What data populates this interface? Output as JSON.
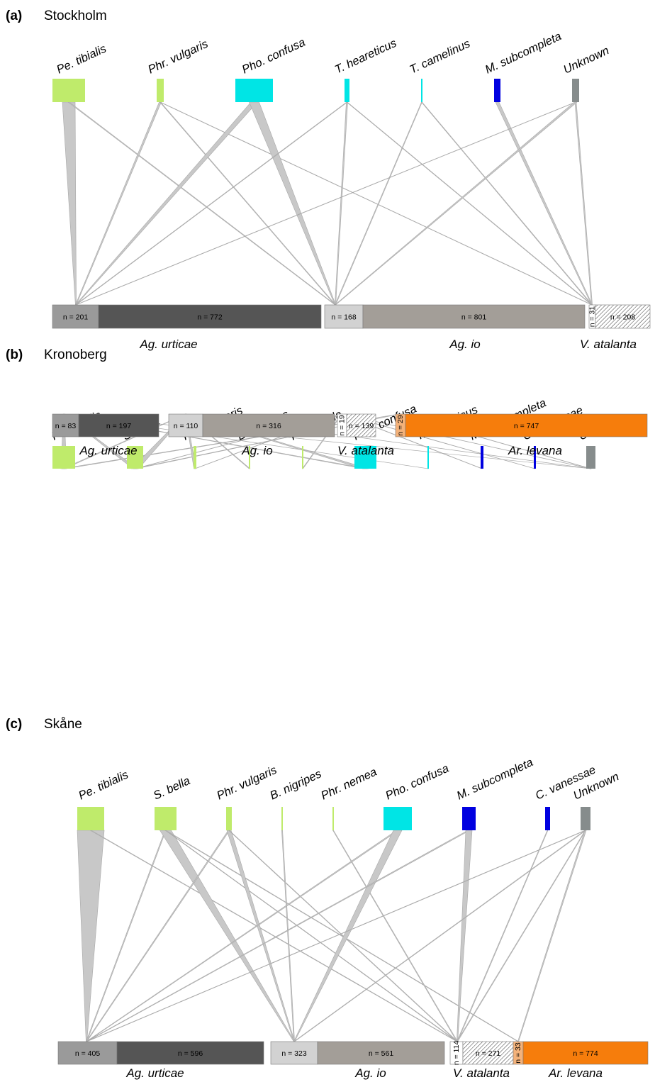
{
  "colors": {
    "unparasitized_urticae": "#555555",
    "parasitized_urticae": "#9a9a9a",
    "unparasitized_io": "#a39e98",
    "parasitized_io": "#d2d2d2",
    "unparasitized_levana": "#f67d0c",
    "parasitized_levana": "#f4b27a",
    "tachinid": "#bfeb6b",
    "ichneumonid": "#00e5e5",
    "braconid": "#0000e0",
    "unknown": "#868c8c",
    "link": "#c8c8c8"
  },
  "panels": [
    {
      "letter": "(a)",
      "name": "Stockholm",
      "parasitoids": [
        {
          "name": "Pe. tibialis",
          "color": "#bfeb6b"
        },
        {
          "name": "Phr. vulgaris",
          "color": "#bfeb6b"
        },
        {
          "name": "Pho. confusa",
          "color": "#00e5e5"
        },
        {
          "name": "T. heareticus",
          "color": "#00e5e5"
        },
        {
          "name": "T. camelinus",
          "color": "#00e5e5"
        },
        {
          "name": "M. subcompleta",
          "color": "#0000e0"
        },
        {
          "name": "Unknown",
          "color": "#868c8c"
        }
      ],
      "hosts": [
        {
          "name": "Ag. urticae",
          "parasitized": "n = 201",
          "unparasitized": "n = 772"
        },
        {
          "name": "Ag. io",
          "parasitized": "n = 168",
          "unparasitized": "n = 801"
        },
        {
          "name": "V. atalanta",
          "parasitized": "n = 31",
          "unparasitized": "n = 208"
        }
      ]
    },
    {
      "letter": "(b)",
      "name": "Kronoberg",
      "parasitoids": [
        {
          "name": "Pe. tibialis",
          "color": "#bfeb6b"
        },
        {
          "name": "S. bella",
          "color": "#bfeb6b"
        },
        {
          "name": "Phr. vulgaris",
          "color": "#bfeb6b"
        },
        {
          "name": "B. nigripes",
          "color": "#bfeb6b"
        },
        {
          "name": "Pa. pavida",
          "color": "#bfeb6b"
        },
        {
          "name": "Pho. confusa",
          "color": "#00e5e5"
        },
        {
          "name": "T. heareticus",
          "color": "#00e5e5"
        },
        {
          "name": "M. subcompleta",
          "color": "#0000e0"
        },
        {
          "name": "C. vanessae",
          "color": "#0000e0"
        },
        {
          "name": "Unknown",
          "color": "#868c8c"
        }
      ],
      "hosts": [
        {
          "name": "Ag. urticae",
          "parasitized": "n = 83",
          "unparasitized": "n = 197"
        },
        {
          "name": "Ag. io",
          "parasitized": "n = 110",
          "unparasitized": "n = 316"
        },
        {
          "name": "V. atalanta",
          "parasitized": "n = 19",
          "unparasitized": "n = 139"
        },
        {
          "name": "Ar. levana",
          "parasitized": "n = 29",
          "unparasitized": "n = 747"
        }
      ]
    },
    {
      "letter": "(c)",
      "name": "Skåne",
      "parasitoids": [
        {
          "name": "Pe. tibialis",
          "color": "#bfeb6b"
        },
        {
          "name": "S. bella",
          "color": "#bfeb6b"
        },
        {
          "name": "Phr. vulgaris",
          "color": "#bfeb6b"
        },
        {
          "name": "B. nigripes",
          "color": "#bfeb6b"
        },
        {
          "name": "Phr. nemea",
          "color": "#bfeb6b"
        },
        {
          "name": "Pho. confusa",
          "color": "#00e5e5"
        },
        {
          "name": "M. subcompleta",
          "color": "#0000e0"
        },
        {
          "name": "C. vanessae",
          "color": "#0000e0"
        },
        {
          "name": "Unknown",
          "color": "#868c8c"
        }
      ],
      "hosts": [
        {
          "name": "Ag. urticae",
          "parasitized": "n = 405",
          "unparasitized": "n = 596"
        },
        {
          "name": "Ag. io",
          "parasitized": "n = 323",
          "unparasitized": "n = 561"
        },
        {
          "name": "V. atalanta",
          "parasitized": "n = 114",
          "unparasitized": "n = 271"
        },
        {
          "name": "Ar. levana",
          "parasitized": "n = 33",
          "unparasitized": "n = 774"
        }
      ]
    }
  ]
}
